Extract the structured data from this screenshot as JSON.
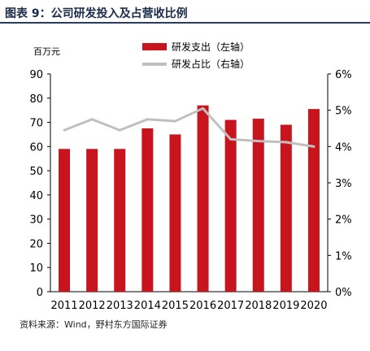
{
  "figure": {
    "title": "图表 9：公司研发投入及占营收比例",
    "source": "资料来源：Wind，野村东方国际证券"
  },
  "chart_data": {
    "type": "bar",
    "categories": [
      "2011",
      "2012",
      "2013",
      "2014",
      "2015",
      "2016",
      "2017",
      "2018",
      "2019",
      "2020"
    ],
    "left_axis": {
      "unit_label": "百万元",
      "ylim": [
        0,
        90
      ],
      "ticks": [
        "0",
        "10",
        "20",
        "30",
        "40",
        "50",
        "60",
        "70",
        "80",
        "90"
      ]
    },
    "right_axis": {
      "ylim": [
        0,
        6
      ],
      "ticks": [
        "0%",
        "1%",
        "2%",
        "3%",
        "4%",
        "5%",
        "6%"
      ]
    },
    "series": [
      {
        "name": "研发支出（左轴）",
        "type": "bar",
        "axis": "left",
        "color": "#c8141c",
        "values": [
          59,
          59,
          59,
          67.5,
          65,
          77,
          71,
          71.5,
          69,
          75.5
        ]
      },
      {
        "name": "研发占比（右轴）",
        "type": "line",
        "axis": "right",
        "color": "#c0c0c0",
        "values": [
          4.45,
          4.75,
          4.45,
          4.75,
          4.7,
          5.05,
          4.2,
          4.15,
          4.12,
          4.0
        ]
      }
    ],
    "legend_position": "top-right",
    "grid": false
  }
}
